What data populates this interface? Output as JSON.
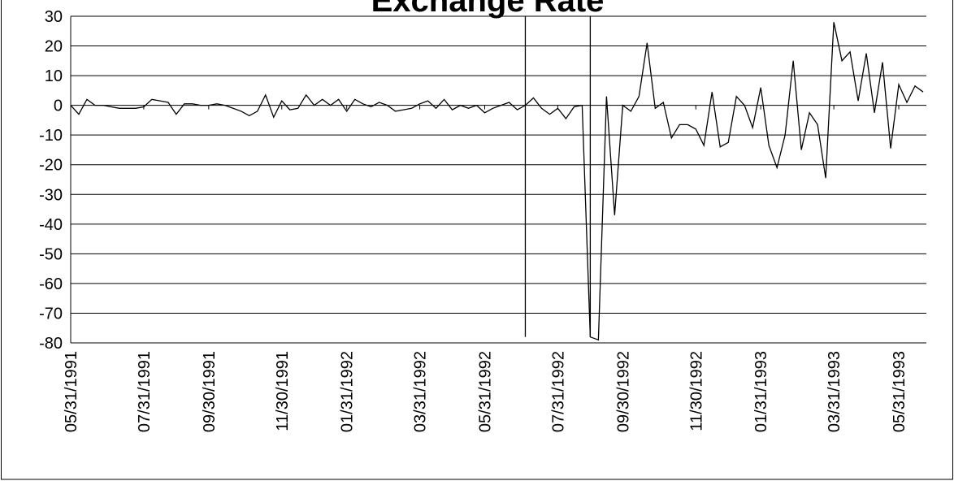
{
  "chart_data": {
    "type": "line",
    "title": "Exchange Rate",
    "categories": [
      "05/31/1991",
      null,
      null,
      null,
      null,
      null,
      null,
      null,
      null,
      "07/31/1991",
      null,
      null,
      null,
      null,
      null,
      null,
      null,
      "09/30/1991",
      null,
      null,
      null,
      null,
      null,
      null,
      null,
      null,
      "11/30/1991",
      null,
      null,
      null,
      null,
      null,
      null,
      null,
      "01/31/1992",
      null,
      null,
      null,
      null,
      null,
      null,
      null,
      null,
      "03/31/1992",
      null,
      null,
      null,
      null,
      null,
      null,
      null,
      "05/31/1992",
      null,
      null,
      null,
      null,
      null,
      null,
      null,
      null,
      "07/31/1992",
      null,
      null,
      null,
      null,
      null,
      null,
      null,
      "09/30/1992",
      null,
      null,
      null,
      null,
      null,
      null,
      null,
      null,
      "11/30/1992",
      null,
      null,
      null,
      null,
      null,
      null,
      null,
      "01/31/1993",
      null,
      null,
      null,
      null,
      null,
      null,
      null,
      null,
      "03/31/1993",
      null,
      null,
      null,
      null,
      null,
      null,
      null,
      "05/31/1993",
      null,
      null,
      null
    ],
    "values": [
      0,
      -3,
      2,
      0,
      0,
      -0.5,
      -1,
      -1,
      -1,
      -0.5,
      2,
      1.5,
      1,
      -3,
      0.5,
      0.5,
      0,
      0,
      0.5,
      0,
      -1,
      -2,
      -3.5,
      -2,
      3.5,
      -4,
      1.5,
      -1.5,
      -1,
      3.5,
      0,
      2,
      0,
      2,
      -2,
      2,
      0.5,
      -0.5,
      1,
      0,
      -2,
      -1.5,
      -1,
      0.5,
      1.5,
      -1,
      2,
      -1.5,
      0,
      -1,
      0,
      -2.5,
      -1,
      0,
      1,
      -1.5,
      0,
      2.5,
      -1,
      -3,
      -1,
      -4.5,
      -0.5,
      0,
      -78,
      -79,
      3,
      -37,
      0,
      -2,
      3,
      21,
      -1,
      1,
      -11,
      -6.5,
      -6.5,
      -8,
      -13.5,
      4.5,
      -14,
      -12.5,
      3,
      0,
      -7.5,
      6,
      -13.5,
      -21,
      -10,
      15,
      -15,
      -2.5,
      -6.5,
      -24.5,
      28,
      15,
      18,
      1.5,
      17.5,
      -2.5,
      14.5,
      -14.5,
      7,
      1,
      6.5,
      4.5
    ],
    "color": "#000000",
    "vertical_lines": [
      56,
      64
    ],
    "ylim": [
      -80,
      30
    ],
    "yticks": [
      -80,
      -70,
      -60,
      -50,
      -40,
      -30,
      -20,
      -10,
      0,
      10,
      20,
      30
    ],
    "grid": true
  }
}
